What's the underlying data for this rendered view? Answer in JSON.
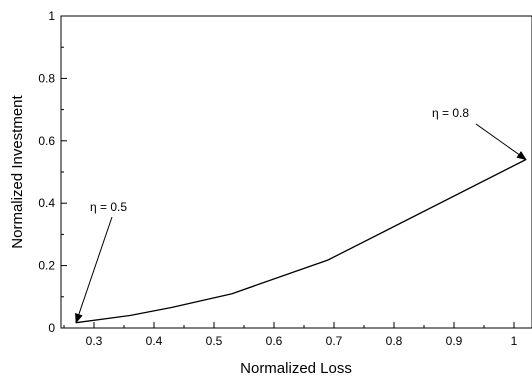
{
  "chart_data": {
    "type": "line",
    "title": "",
    "xlabel": "Normalized Loss",
    "ylabel": "Normalized Investment",
    "xlim": [
      0.245,
      1.03
    ],
    "ylim": [
      0,
      1
    ],
    "x_ticks": [
      0.3,
      0.4,
      0.5,
      0.6,
      0.7,
      0.8,
      0.9,
      1
    ],
    "y_ticks": [
      0,
      0.2,
      0.4,
      0.6,
      0.8,
      1
    ],
    "x_tick_labels": [
      "0.3",
      "0.4",
      "0.5",
      "0.6",
      "0.7",
      "0.8",
      "0.9",
      "1"
    ],
    "y_tick_labels": [
      "0",
      "0.2",
      "0.4",
      "0.6",
      "0.8",
      "1"
    ],
    "grid": false,
    "series": [
      {
        "x": [
          0.27,
          0.36,
          0.43,
          0.53,
          0.69,
          1.02
        ],
        "y": [
          0.017,
          0.04,
          0.066,
          0.11,
          0.218,
          0.54
        ],
        "color": "#000000"
      }
    ],
    "annotations": [
      {
        "text": "η = 0.5",
        "target": [
          0.27,
          0.017
        ]
      },
      {
        "text": "η = 0.8",
        "target": [
          1.02,
          0.54
        ]
      }
    ]
  }
}
